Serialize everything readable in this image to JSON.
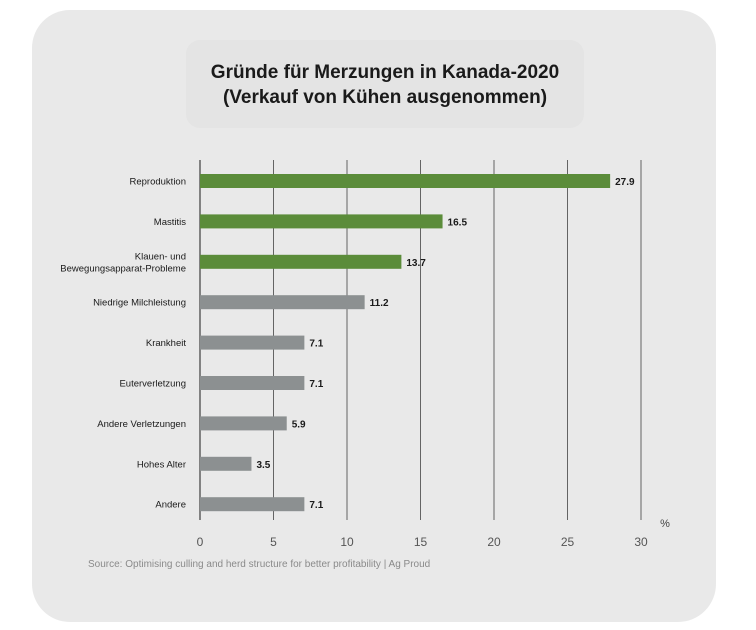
{
  "title_line1": "Gründe für Merzungen in Kanada-2020",
  "title_line2": "(Verkauf von Kühen ausgenommen)",
  "source": "Source: Optimising culling and herd structure for better profitability | Ag Proud",
  "colors": {
    "green": "#5b8c3a",
    "gray": "#8c9091",
    "grid": "#555555",
    "card": "#e9e9e9"
  },
  "chart_data": {
    "type": "bar",
    "orientation": "horizontal",
    "categories": [
      [
        "Reproduktion"
      ],
      [
        "Mastitis"
      ],
      [
        "Klauen- und",
        "Bewegungsapparat-Probleme"
      ],
      [
        "Niedrige Milchleistung"
      ],
      [
        "Krankheit"
      ],
      [
        "Euterverletzung"
      ],
      [
        "Andere Verletzungen"
      ],
      [
        "Hohes Alter"
      ],
      [
        "Andere"
      ]
    ],
    "values": [
      27.9,
      16.5,
      13.7,
      11.2,
      7.1,
      7.1,
      5.9,
      3.5,
      7.1
    ],
    "value_labels": [
      "27.9",
      "16.5",
      "13.7",
      "11.2",
      "7.1",
      "7.1",
      "5.9",
      "3.5",
      "7.1"
    ],
    "bar_colors": [
      "green",
      "green",
      "green",
      "gray",
      "gray",
      "gray",
      "gray",
      "gray",
      "gray"
    ],
    "xticks": [
      0,
      5,
      10,
      15,
      20,
      25,
      30
    ],
    "xlim": [
      0,
      30
    ],
    "unit_label": "%",
    "grid": true
  }
}
